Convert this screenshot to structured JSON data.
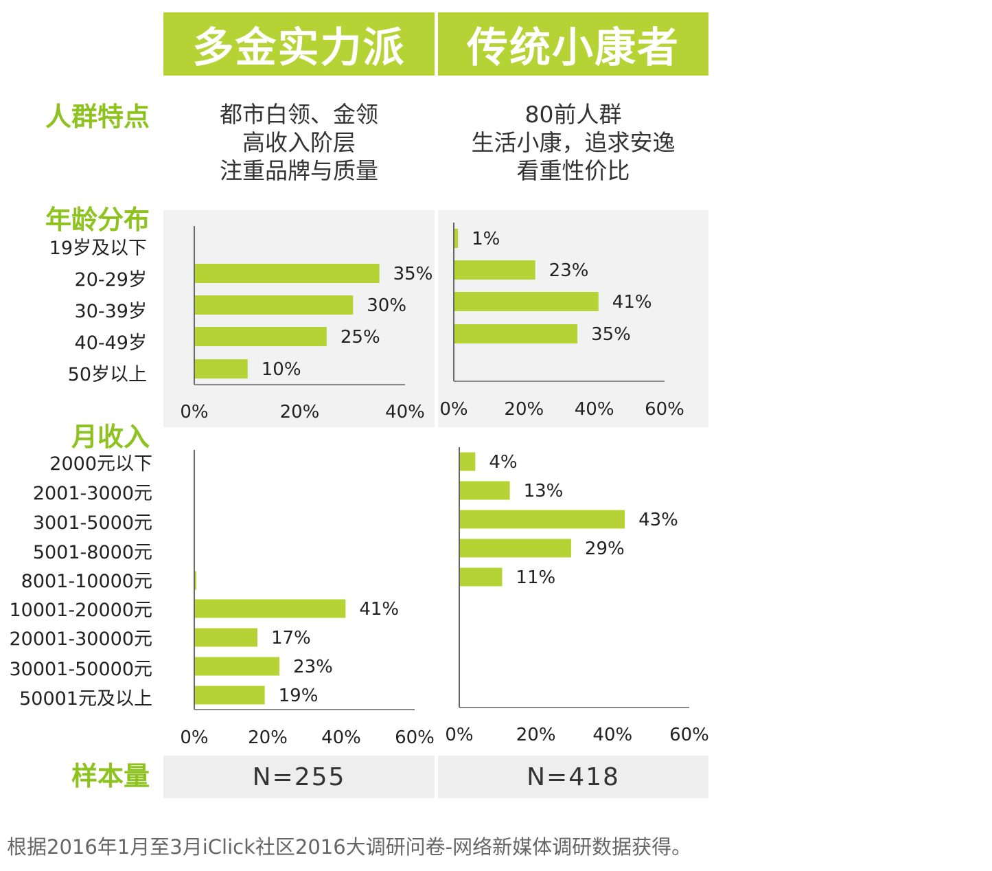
{
  "header": {
    "segment1": "多金实力派",
    "segment2": "传统小康者"
  },
  "rows": {
    "traits": "人群特点",
    "age": "年龄分布",
    "income": "月收入",
    "sample": "样本量"
  },
  "traits": {
    "segment1": [
      "都市白领、金领",
      "高收入阶层",
      "注重品牌与质量"
    ],
    "segment2": [
      "80前人群",
      "生活小康，追求安逸",
      "看重性价比"
    ]
  },
  "age_categories": [
    "19岁及以下",
    "20-29岁",
    "30-39岁",
    "40-49岁",
    "50岁以上"
  ],
  "income_categories": [
    "2000元以下",
    "2001-3000元",
    "3001-5000元",
    "5001-8000元",
    "8001-10000元",
    "10001-20000元",
    "20001-30000元",
    "30001-50000元",
    "50001元及以上"
  ],
  "sample": {
    "segment1": "N=255",
    "segment2": "N=418"
  },
  "footnote": "根据2016年1月至3月iClick社区2016大调研问卷-网络新媒体调研数据获得。",
  "colors": {
    "accent": "#b5d334",
    "title_green": "#8dc21f",
    "panel": "#f2f2f2"
  },
  "chart_data": [
    {
      "type": "bar",
      "orientation": "horizontal",
      "title": "年龄分布 - 多金实力派",
      "categories": [
        "19岁及以下",
        "20-29岁",
        "30-39岁",
        "40-49岁",
        "50岁以上"
      ],
      "values": [
        null,
        35,
        30,
        25,
        10
      ],
      "labels": [
        "",
        "35%",
        "30%",
        "25%",
        "10%"
      ],
      "xlim": [
        0,
        40
      ],
      "ticks": [
        "0%",
        "20%",
        "40%"
      ]
    },
    {
      "type": "bar",
      "orientation": "horizontal",
      "title": "年龄分布 - 传统小康者",
      "categories": [
        "19岁及以下",
        "20-29岁",
        "30-39岁",
        "40-49岁",
        "50岁以上"
      ],
      "values": [
        1,
        23,
        41,
        35,
        null
      ],
      "labels": [
        "1%",
        "23%",
        "41%",
        "35%",
        ""
      ],
      "xlim": [
        0,
        60
      ],
      "ticks": [
        "0%",
        "20%",
        "40%",
        "60%"
      ]
    },
    {
      "type": "bar",
      "orientation": "horizontal",
      "title": "月收入 - 多金实力派",
      "categories": [
        "2000元以下",
        "2001-3000元",
        "3001-5000元",
        "5001-8000元",
        "8001-10000元",
        "10001-20000元",
        "20001-30000元",
        "30001-50000元",
        "50001元及以上"
      ],
      "values": [
        null,
        null,
        null,
        null,
        0.2,
        41,
        17,
        23,
        19
      ],
      "labels": [
        "",
        "",
        "",
        "",
        "",
        "41%",
        "17%",
        "23%",
        "19%"
      ],
      "xlim": [
        0,
        60
      ],
      "ticks": [
        "0%",
        "20%",
        "40%",
        "60%"
      ]
    },
    {
      "type": "bar",
      "orientation": "horizontal",
      "title": "月收入 - 传统小康者",
      "categories": [
        "2000元以下",
        "2001-3000元",
        "3001-5000元",
        "5001-8000元",
        "8001-10000元",
        "10001-20000元",
        "20001-30000元",
        "30001-50000元",
        "50001元及以上"
      ],
      "values": [
        4,
        13,
        43,
        29,
        11,
        null,
        null,
        null,
        null
      ],
      "labels": [
        "4%",
        "13%",
        "43%",
        "29%",
        "11%",
        "",
        "",
        "",
        ""
      ],
      "xlim": [
        0,
        60
      ],
      "ticks": [
        "0%",
        "20%",
        "40%",
        "60%"
      ]
    }
  ]
}
